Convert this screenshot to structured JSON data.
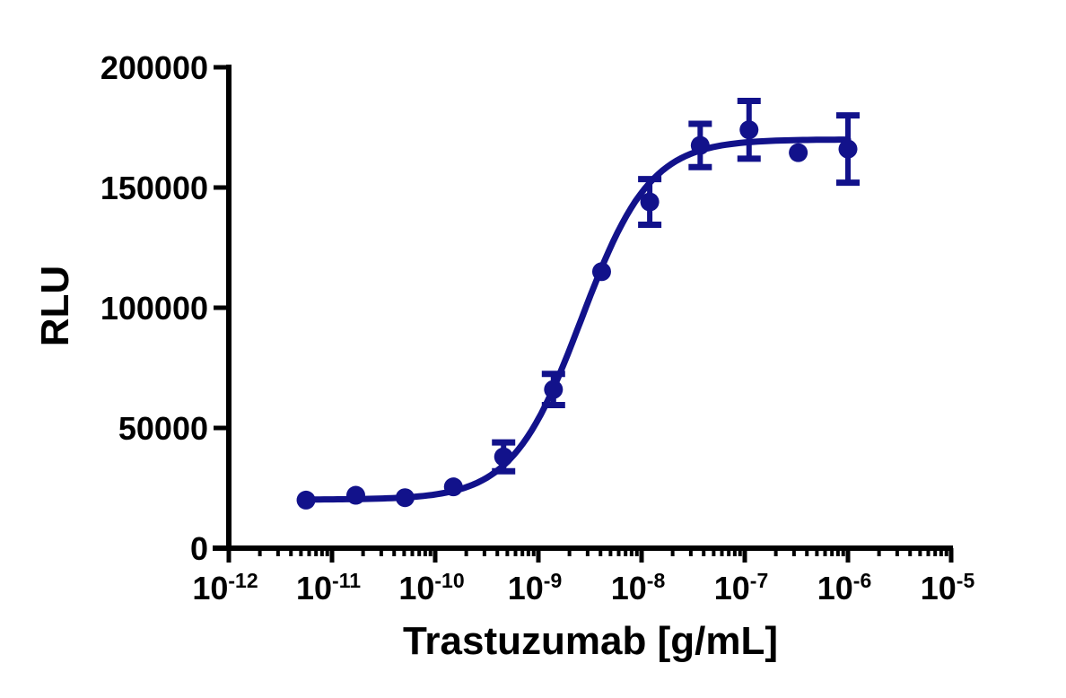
{
  "chart_data": {
    "type": "scatter",
    "subtype": "sigmoidal-dose-response-with-fit",
    "title": "",
    "xlabel": "Trastuzumab [g/mL]",
    "ylabel": "RLU",
    "x_scale": "log10",
    "x_tick_base": "10",
    "x_tick_exponents": [
      -12,
      -11,
      -10,
      -9,
      -8,
      -7,
      -6,
      -5
    ],
    "x_minor_ticks": "log-decade-2-to-9",
    "y_ticks": [
      "0",
      "50000",
      "100000",
      "150000",
      "200000"
    ],
    "y_tick_values": [
      0,
      50000,
      100000,
      150000,
      200000
    ],
    "ylim": [
      0,
      200000
    ],
    "grid": false,
    "legend": "none",
    "colors": {
      "series": "#12128b",
      "axis": "#000000",
      "text": "#000000",
      "background": "#ffffff"
    },
    "series": [
      {
        "name": "Trastuzumab",
        "marker": "filled-circle",
        "points": [
          {
            "x_g_per_ml": 5.6e-12,
            "y_rlu": 20000,
            "y_err": 0
          },
          {
            "x_g_per_ml": 1.7e-11,
            "y_rlu": 22000,
            "y_err": 0
          },
          {
            "x_g_per_ml": 5.1e-11,
            "y_rlu": 21000,
            "y_err": 0
          },
          {
            "x_g_per_ml": 1.5e-10,
            "y_rlu": 25500,
            "y_err": 0
          },
          {
            "x_g_per_ml": 4.6e-10,
            "y_rlu": 38000,
            "y_err": 6000
          },
          {
            "x_g_per_ml": 1.4e-09,
            "y_rlu": 66000,
            "y_err": 6500
          },
          {
            "x_g_per_ml": 4.1e-09,
            "y_rlu": 115000,
            "y_err": 0
          },
          {
            "x_g_per_ml": 1.2e-08,
            "y_rlu": 144000,
            "y_err": 9500
          },
          {
            "x_g_per_ml": 3.7e-08,
            "y_rlu": 167500,
            "y_err": 9000
          },
          {
            "x_g_per_ml": 1.1e-07,
            "y_rlu": 174000,
            "y_err": 12000
          },
          {
            "x_g_per_ml": 3.3e-07,
            "y_rlu": 164500,
            "y_err": 0
          },
          {
            "x_g_per_ml": 1e-06,
            "y_rlu": 166000,
            "y_err": 14000
          }
        ],
        "fit_curve": {
          "model": "four-parameter-logistic",
          "bottom": 20200,
          "top": 170000,
          "ec50_g_per_ml": 2.6e-09,
          "hill_slope": 1.3,
          "x_start": 5.6e-12,
          "x_end": 1e-06
        }
      }
    ]
  }
}
